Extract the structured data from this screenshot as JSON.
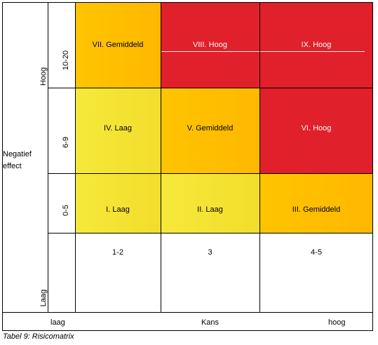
{
  "y_axis": {
    "label": "Negatief effect",
    "label_line1": "Negatief",
    "label_line2": "effect",
    "high": "Hoog",
    "low": "Laag",
    "rows": [
      "10-20",
      "6-9",
      "0-5"
    ]
  },
  "x_axis": {
    "label": "Kans",
    "low": "laag",
    "high": "hoog",
    "columns": [
      "1-2",
      "3",
      "4-5"
    ]
  },
  "matrix": [
    [
      {
        "label": "VII. Gemiddeld",
        "color": "#FFC000",
        "gradient": [
          "#FFC000",
          "#FFB000"
        ]
      },
      {
        "label": "VIII. Hoog",
        "color": "#E0202A"
      },
      {
        "label": "IX. Hoog",
        "color": "#E0202A"
      }
    ],
    [
      {
        "label": "IV. Laag",
        "color": "#F5E52F"
      },
      {
        "label": "V. Gemiddeld",
        "color": "#FFC000"
      },
      {
        "label": "VI. Hoog",
        "color": "#E0202A"
      }
    ],
    [
      {
        "label": "I. Laag",
        "color": "#F5E52F"
      },
      {
        "label": "II. Laag",
        "color": "#F5E52F"
      },
      {
        "label": "III. Gemiddeld",
        "color": "#FFC000"
      }
    ]
  ],
  "caption": "Tabel 9: Risicomatrix"
}
